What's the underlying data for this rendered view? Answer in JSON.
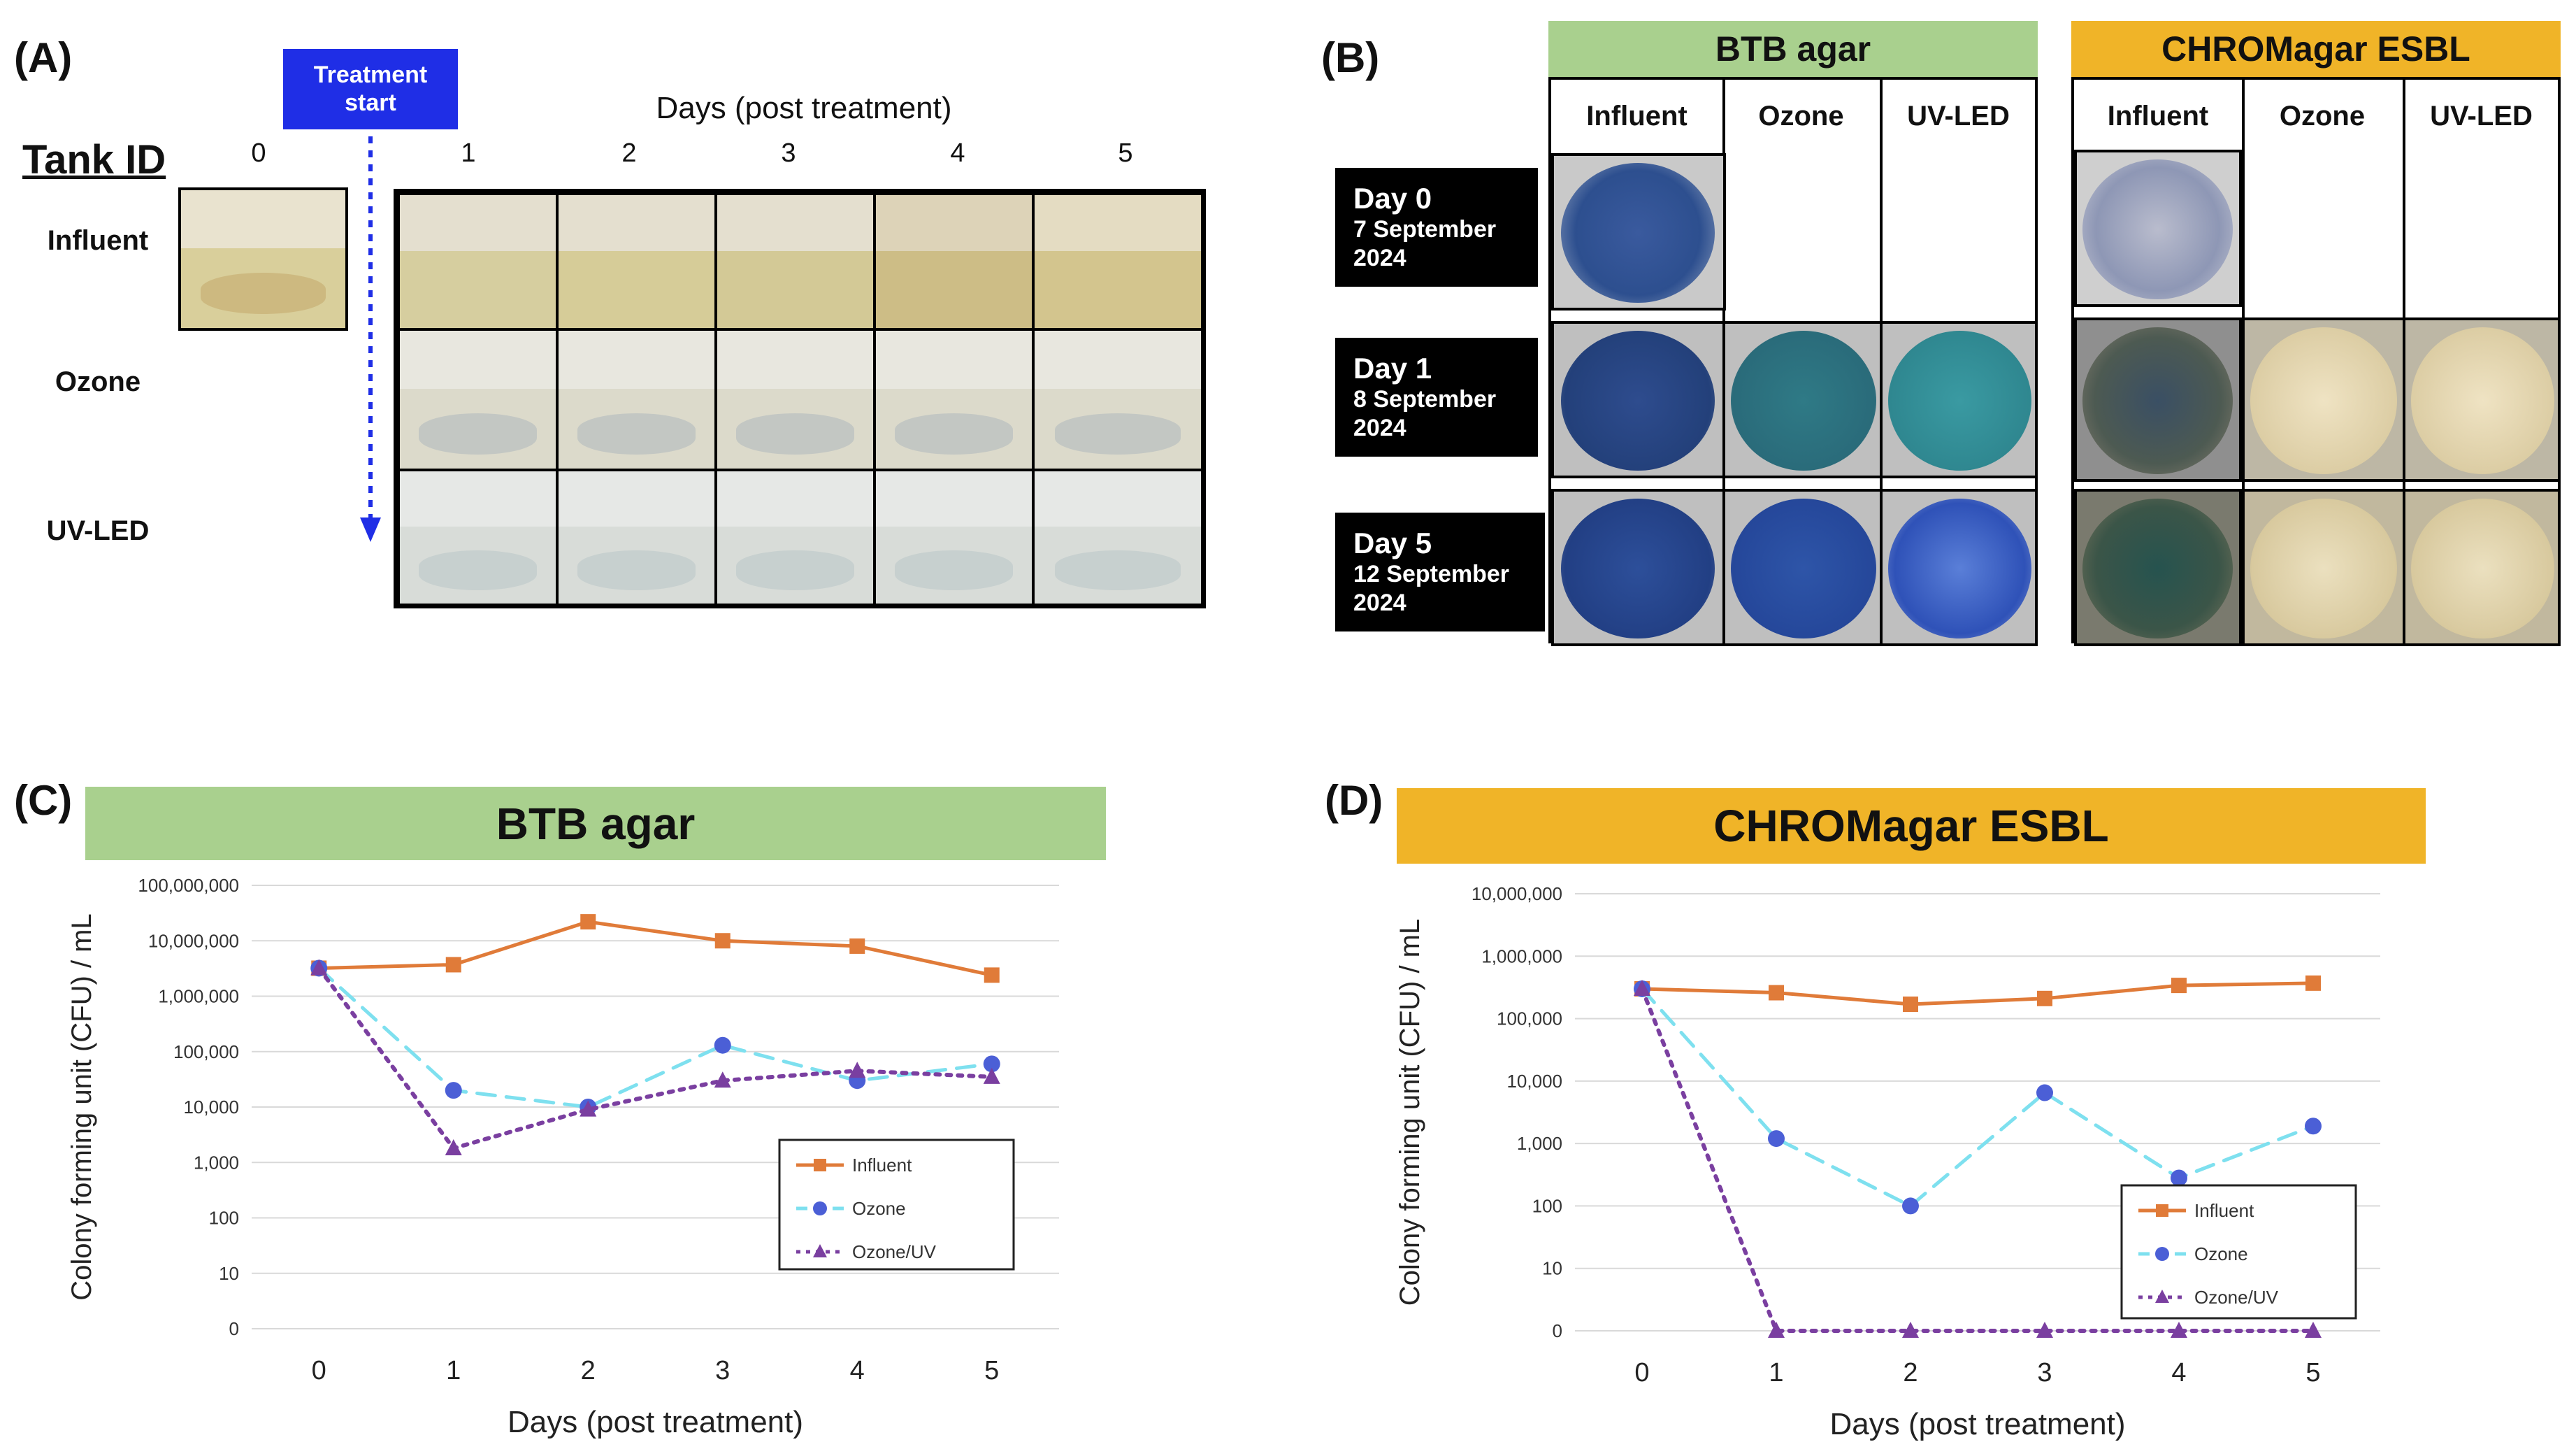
{
  "panelA": {
    "label": "(A)",
    "treatment_box": "Treatment start",
    "days_title": "Days (post treatment)",
    "tank_id": "Tank ID",
    "day_numbers": [
      "0",
      "1",
      "2",
      "3",
      "4",
      "5"
    ],
    "rows": [
      "Influent",
      "Ozone",
      "UV-LED"
    ],
    "colors": {
      "treatment_box": "#1f2ee6",
      "arrow": "#1f2ee6"
    }
  },
  "panelB": {
    "label": "(B)",
    "btb_title": "BTB agar",
    "chrom_title": "CHROMagar ESBL",
    "columns": [
      "Influent",
      "Ozone",
      "UV-LED"
    ],
    "day_rows": [
      {
        "day": "Day 0",
        "date_line1": "7 September",
        "date_line2": "2024"
      },
      {
        "day": "Day 1",
        "date_line1": "8 September",
        "date_line2": "2024"
      },
      {
        "day": "Day 5",
        "date_line1": "12 September",
        "date_line2": "2024"
      }
    ],
    "colors": {
      "btb": "#a9d08e",
      "chrom": "#f0b428"
    }
  },
  "panelC": {
    "label": "(C)",
    "banner": "BTB agar"
  },
  "panelD": {
    "label": "(D)",
    "banner": "CHROMagar ESBL"
  },
  "chart_data": [
    {
      "type": "line",
      "title": "BTB agar",
      "xlabel": "Days (post treatment)",
      "ylabel": "Colony forming unit (CFU) / mL",
      "yscale": "log",
      "categories": [
        "0",
        "1",
        "2",
        "3",
        "4",
        "5"
      ],
      "ytick_labels": [
        "0",
        "10",
        "100",
        "1,000",
        "10,000",
        "100,000",
        "1,000,000",
        "10,000,000",
        "100,000,000"
      ],
      "ylim_exp": [
        0,
        8
      ],
      "series": [
        {
          "name": "Influent",
          "values": [
            3200000,
            3700000,
            22000000,
            10000000,
            8000000,
            2400000
          ],
          "color": "#e07b39",
          "marker": "square",
          "dash": "solid"
        },
        {
          "name": "Ozone",
          "values": [
            3200000,
            20000,
            10000,
            130000,
            30000,
            60000
          ],
          "color": "#7ee0ef",
          "marker": "circle",
          "markerColor": "#4b5fd6",
          "dash": "dashed"
        },
        {
          "name": "Ozone/UV",
          "values": [
            3200000,
            1800,
            9000,
            30000,
            45000,
            35000
          ],
          "color": "#7a3fa0",
          "marker": "triangle",
          "dash": "dotted"
        }
      ],
      "legend": "center-right"
    },
    {
      "type": "line",
      "title": "CHROMagar ESBL",
      "xlabel": "Days (post treatment)",
      "ylabel": "Colony forming unit (CFU) / mL",
      "yscale": "log",
      "categories": [
        "0",
        "1",
        "2",
        "3",
        "4",
        "5"
      ],
      "ytick_labels": [
        "0",
        "10",
        "100",
        "1,000",
        "10,000",
        "100,000",
        "1,000,000",
        "10,000,000"
      ],
      "ylim_exp": [
        0,
        7
      ],
      "series": [
        {
          "name": "Influent",
          "values": [
            300000,
            260000,
            170000,
            210000,
            340000,
            370000
          ],
          "color": "#e07b39",
          "marker": "square",
          "dash": "solid"
        },
        {
          "name": "Ozone",
          "values": [
            300000,
            1200,
            100,
            6500,
            280,
            1900
          ],
          "color": "#7ee0ef",
          "marker": "circle",
          "markerColor": "#4b5fd6",
          "dash": "dashed"
        },
        {
          "name": "Ozone/UV",
          "values": [
            300000,
            0,
            0,
            0,
            0,
            0
          ],
          "color": "#7a3fa0",
          "marker": "triangle",
          "dash": "dotted"
        }
      ],
      "legend": "lower-right"
    }
  ]
}
